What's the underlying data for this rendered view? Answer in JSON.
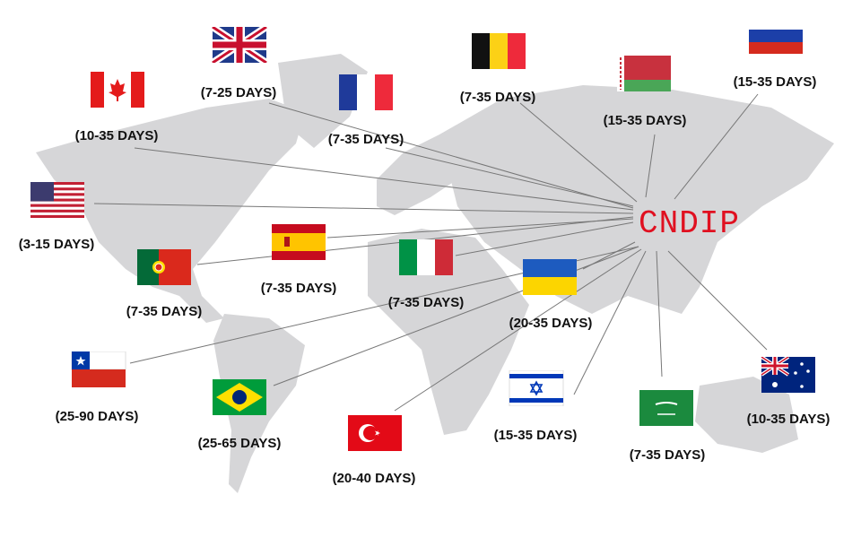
{
  "brand": "CNDIP",
  "colors": {
    "brand": "#e01020",
    "land": "#d6d6d8",
    "line": "#777777"
  },
  "destinations": [
    {
      "country": "United Kingdom",
      "flag": "uk-flag",
      "days": "(7-25 DAYS)"
    },
    {
      "country": "Canada",
      "flag": "canada-flag",
      "days": "(10-35 DAYS)"
    },
    {
      "country": "France",
      "flag": "france-flag",
      "days": "(7-35 DAYS)"
    },
    {
      "country": "Belgium",
      "flag": "belgium-flag",
      "days": "(7-35 DAYS)"
    },
    {
      "country": "Belarus",
      "flag": "belarus-flag",
      "days": "(15-35 DAYS)"
    },
    {
      "country": "Russia",
      "flag": "russia-flag",
      "days": "(15-35 DAYS)"
    },
    {
      "country": "United States",
      "flag": "usa-flag",
      "days": "(3-15 DAYS)"
    },
    {
      "country": "Portugal",
      "flag": "portugal-flag",
      "days": "(7-35 DAYS)"
    },
    {
      "country": "Spain",
      "flag": "spain-flag",
      "days": "(7-35 DAYS)"
    },
    {
      "country": "Italy",
      "flag": "italy-flag",
      "days": "(7-35 DAYS)"
    },
    {
      "country": "Ukraine",
      "flag": "ukraine-flag",
      "days": "(20-35 DAYS)"
    },
    {
      "country": "Chile",
      "flag": "chile-flag",
      "days": "(25-90 DAYS)"
    },
    {
      "country": "Brazil",
      "flag": "brazil-flag",
      "days": "(25-65 DAYS)"
    },
    {
      "country": "Turkey",
      "flag": "turkey-flag",
      "days": "(20-40 DAYS)"
    },
    {
      "country": "Israel",
      "flag": "israel-flag",
      "days": "(15-35 DAYS)"
    },
    {
      "country": "Saudi Arabia",
      "flag": "saudi-flag",
      "days": "(7-35 DAYS)"
    },
    {
      "country": "Australia",
      "flag": "australia-flag",
      "days": "(10-35 DAYS)"
    }
  ]
}
